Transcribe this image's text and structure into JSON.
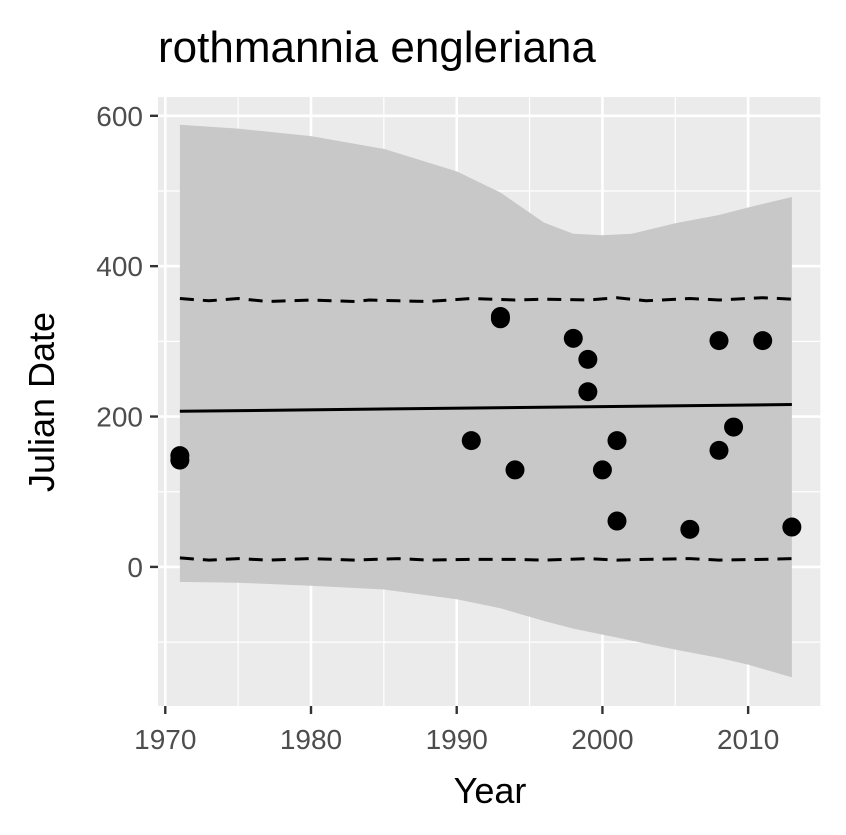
{
  "chart_data": {
    "type": "scatter",
    "title": "rothmannia engleriana",
    "xlabel": "Year",
    "ylabel": "Julian Date",
    "xlim": [
      1969.5,
      2015
    ],
    "ylim": [
      -185,
      625
    ],
    "xticks": [
      1970,
      1980,
      1990,
      2000,
      2010
    ],
    "yticks": [
      0,
      200,
      400,
      600
    ],
    "grid": true,
    "legend": "none",
    "colors": {
      "panel": "#ebebeb",
      "grid": "#ffffff",
      "ribbon": "#c8c8c8",
      "points": "#000000",
      "lines": "#000000"
    },
    "points": [
      {
        "x": 1971,
        "y": 148
      },
      {
        "x": 1971,
        "y": 142
      },
      {
        "x": 1991,
        "y": 168
      },
      {
        "x": 1993,
        "y": 333
      },
      {
        "x": 1993,
        "y": 330
      },
      {
        "x": 1994,
        "y": 129
      },
      {
        "x": 1998,
        "y": 304
      },
      {
        "x": 1999,
        "y": 276
      },
      {
        "x": 1999,
        "y": 233
      },
      {
        "x": 2000,
        "y": 129
      },
      {
        "x": 2001,
        "y": 168
      },
      {
        "x": 2001,
        "y": 61
      },
      {
        "x": 2006,
        "y": 50
      },
      {
        "x": 2008,
        "y": 301
      },
      {
        "x": 2008,
        "y": 155
      },
      {
        "x": 2009,
        "y": 186
      },
      {
        "x": 2011,
        "y": 301
      },
      {
        "x": 2013,
        "y": 53
      }
    ],
    "fit_line": [
      {
        "x": 1971,
        "y": 207
      },
      {
        "x": 2013,
        "y": 216
      }
    ],
    "ribbon": [
      {
        "x": 1971,
        "upper": 588,
        "lower": -20
      },
      {
        "x": 1975,
        "upper": 583,
        "lower": -21
      },
      {
        "x": 1980,
        "upper": 573,
        "lower": -25
      },
      {
        "x": 1985,
        "upper": 556,
        "lower": -30
      },
      {
        "x": 1990,
        "upper": 526,
        "lower": -43
      },
      {
        "x": 1993,
        "upper": 498,
        "lower": -55
      },
      {
        "x": 1996,
        "upper": 458,
        "lower": -72
      },
      {
        "x": 1998,
        "upper": 443,
        "lower": -82
      },
      {
        "x": 2000,
        "upper": 441,
        "lower": -90
      },
      {
        "x": 2002,
        "upper": 443,
        "lower": -98
      },
      {
        "x": 2005,
        "upper": 457,
        "lower": -110
      },
      {
        "x": 2008,
        "upper": 468,
        "lower": -121
      },
      {
        "x": 2010,
        "upper": 478,
        "lower": -130
      },
      {
        "x": 2013,
        "upper": 492,
        "lower": -147
      }
    ],
    "upper_dashed": [
      {
        "x": 1971,
        "y": 357
      },
      {
        "x": 1973,
        "y": 354
      },
      {
        "x": 1975,
        "y": 357
      },
      {
        "x": 1977,
        "y": 353
      },
      {
        "x": 1980,
        "y": 355
      },
      {
        "x": 1983,
        "y": 353
      },
      {
        "x": 1984,
        "y": 355
      },
      {
        "x": 1986,
        "y": 354
      },
      {
        "x": 1988,
        "y": 353
      },
      {
        "x": 1991,
        "y": 357
      },
      {
        "x": 1994,
        "y": 355
      },
      {
        "x": 1996,
        "y": 356
      },
      {
        "x": 1999,
        "y": 355
      },
      {
        "x": 2001,
        "y": 358
      },
      {
        "x": 2003,
        "y": 354
      },
      {
        "x": 2006,
        "y": 357
      },
      {
        "x": 2008,
        "y": 355
      },
      {
        "x": 2011,
        "y": 358
      },
      {
        "x": 2013,
        "y": 356
      }
    ],
    "lower_dashed": [
      {
        "x": 1971,
        "y": 12
      },
      {
        "x": 1973,
        "y": 9
      },
      {
        "x": 1975,
        "y": 11
      },
      {
        "x": 1977,
        "y": 9
      },
      {
        "x": 1980,
        "y": 11
      },
      {
        "x": 1983,
        "y": 9
      },
      {
        "x": 1986,
        "y": 11
      },
      {
        "x": 1988,
        "y": 9
      },
      {
        "x": 1991,
        "y": 10
      },
      {
        "x": 1994,
        "y": 10
      },
      {
        "x": 1996,
        "y": 9
      },
      {
        "x": 1999,
        "y": 11
      },
      {
        "x": 2001,
        "y": 9
      },
      {
        "x": 2003,
        "y": 10
      },
      {
        "x": 2006,
        "y": 11
      },
      {
        "x": 2008,
        "y": 9
      },
      {
        "x": 2011,
        "y": 10
      },
      {
        "x": 2013,
        "y": 11
      }
    ]
  }
}
